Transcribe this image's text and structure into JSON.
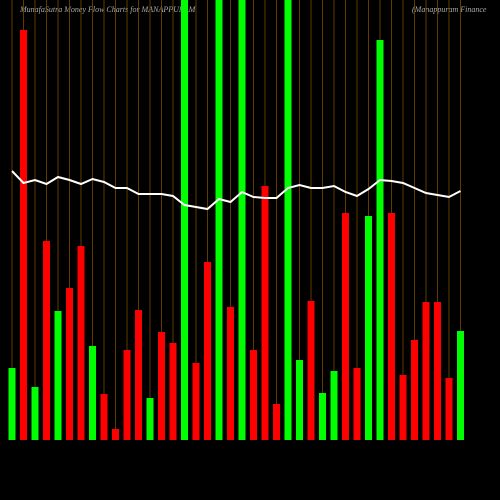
{
  "chart_data": {
    "type": "money-flow",
    "title": "MunafaSutra  Money Flow  Charts for MANAPPURAM",
    "subtitle": "(Manappuram Finance",
    "categories": [
      null,
      null,
      null,
      null,
      null,
      null,
      null,
      null,
      null,
      null,
      null,
      null,
      null,
      null,
      null,
      null,
      null,
      null,
      null,
      null,
      null,
      null,
      null,
      null,
      null,
      null,
      null,
      null,
      null,
      null,
      null,
      null,
      null,
      null,
      null,
      null,
      null,
      null,
      null,
      null
    ],
    "ylim": [
      0,
      440
    ],
    "background": "#000000",
    "grid_color": "#7a4a00",
    "bars": {
      "values": [
        72,
        410,
        53,
        199,
        129,
        152,
        194,
        94,
        46,
        11,
        90,
        130,
        42,
        108,
        97,
        440,
        77,
        178,
        440,
        133,
        440,
        90,
        254,
        36,
        440,
        80,
        139,
        47,
        69,
        227,
        72,
        224,
        400,
        227,
        65,
        100,
        138,
        138,
        62,
        109
      ],
      "colors": [
        "#00ff00",
        "#ff0000",
        "#00ff00",
        "#ff0000",
        "#00ff00",
        "#ff0000",
        "#ff0000",
        "#00ff00",
        "#ff0000",
        "#ff0000",
        "#ff0000",
        "#ff0000",
        "#00ff00",
        "#ff0000",
        "#ff0000",
        "#00ff00",
        "#ff0000",
        "#ff0000",
        "#00ff00",
        "#ff0000",
        "#00ff00",
        "#ff0000",
        "#ff0000",
        "#ff0000",
        "#00ff00",
        "#00ff00",
        "#ff0000",
        "#00ff00",
        "#00ff00",
        "#ff0000",
        "#ff0000",
        "#00ff00",
        "#00ff00",
        "#ff0000",
        "#ff0000",
        "#ff0000",
        "#ff0000",
        "#ff0000",
        "#ff0000",
        "#00ff00"
      ]
    },
    "line": {
      "values": [
        269,
        257,
        260,
        256,
        263,
        260,
        256,
        261,
        258,
        252,
        252,
        246,
        246,
        246,
        244,
        235,
        233,
        231,
        241,
        238,
        248,
        243,
        242,
        242,
        252,
        255,
        252,
        252,
        254,
        248,
        244,
        251,
        260,
        259,
        257,
        252,
        247,
        245,
        243,
        249
      ],
      "color": "#ffffff"
    }
  }
}
